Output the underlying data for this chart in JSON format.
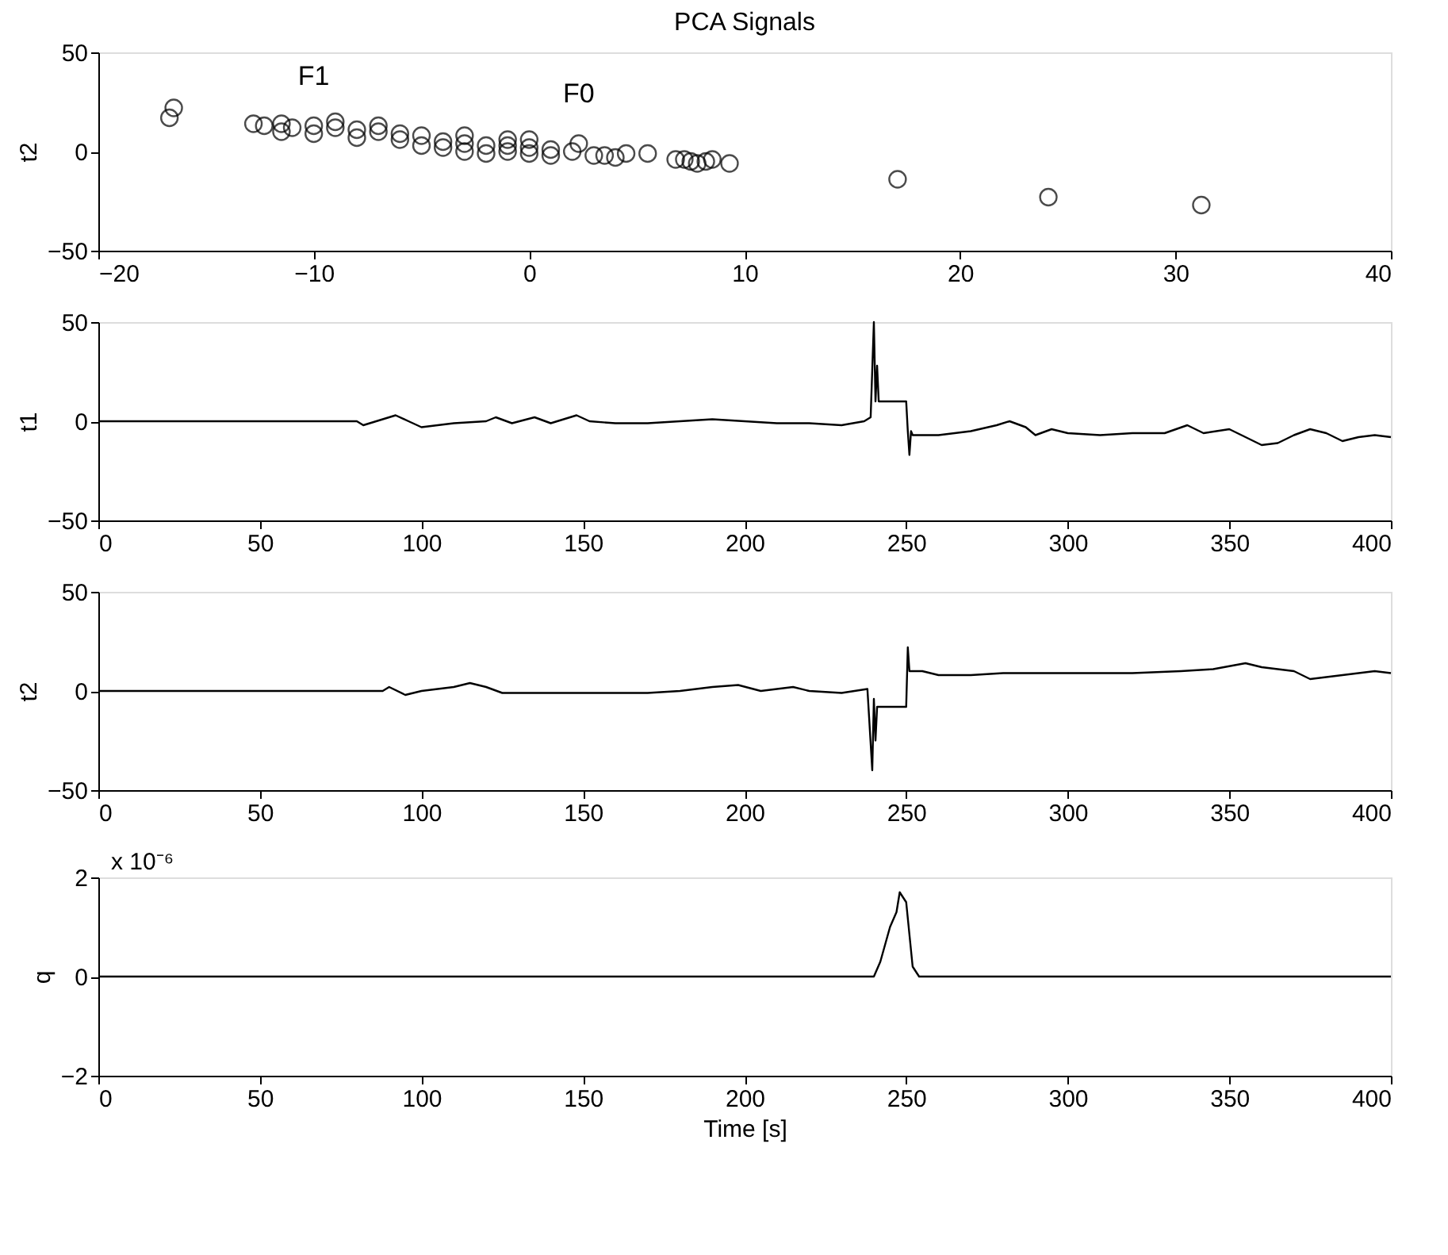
{
  "chart_data": [
    {
      "type": "scatter",
      "title": "PCA Signals",
      "ylabel": "t2",
      "marker": "circle",
      "grid": false,
      "xlim": [
        -20,
        40
      ],
      "xticks": [
        -20,
        -10,
        0,
        10,
        20,
        30,
        40
      ],
      "ylim": [
        -50,
        50
      ],
      "yticks": [
        -50,
        0,
        50
      ],
      "annotations": [
        {
          "text": "F1",
          "x": -10,
          "y": 13
        },
        {
          "text": "F0",
          "x": 2.3,
          "y": 4
        }
      ],
      "series": [
        {
          "color": "#000000",
          "x": [
            -16.5,
            -16.7,
            -12.8,
            -12.3,
            -11.5,
            -11,
            -10,
            -9,
            -8,
            -7,
            -6,
            -5,
            -4,
            -3,
            -2,
            -1,
            0,
            1,
            2,
            2.3,
            -11.5,
            -10,
            -8,
            -6,
            -4,
            -3,
            -2,
            -1,
            0,
            1,
            -5,
            -3,
            -1,
            0,
            -7,
            -9,
            3,
            3.5,
            4,
            4.5,
            5.5,
            6.8,
            7.2,
            7.5,
            7.8,
            8.2,
            8.5,
            9.3,
            17.1,
            24.1,
            31.2
          ],
          "values": [
            22,
            17,
            14,
            13,
            14,
            12,
            13,
            12,
            11,
            10,
            9,
            8,
            5,
            4,
            3,
            3,
            2,
            1,
            0,
            4,
            10,
            9,
            7,
            6,
            2,
            0,
            -1,
            0,
            -1,
            -2,
            3,
            8,
            6,
            6,
            13,
            15,
            -2,
            -2,
            -3,
            -1,
            -1,
            -4,
            -4,
            -5,
            -6,
            -5,
            -4,
            -6,
            -14,
            -23,
            -27
          ]
        }
      ]
    },
    {
      "type": "line",
      "ylabel": "t1",
      "marker": "none",
      "line_style": "solid",
      "grid": false,
      "legend": false,
      "xlim": [
        0,
        400
      ],
      "xticks": [
        0,
        50,
        100,
        150,
        200,
        250,
        300,
        350,
        400
      ],
      "ylim": [
        -50,
        50
      ],
      "yticks": [
        -50,
        0,
        50
      ],
      "series": [
        {
          "color": "#000000",
          "x": [
            0,
            80,
            82,
            88,
            92,
            96,
            100,
            105,
            110,
            120,
            123,
            128,
            135,
            140,
            148,
            152,
            160,
            170,
            180,
            190,
            200,
            210,
            220,
            230,
            237,
            239,
            240,
            240.5,
            241,
            241.5,
            250,
            250.5,
            251,
            251.5,
            252,
            260,
            270,
            278,
            282,
            287,
            290,
            295,
            300,
            310,
            320,
            330,
            337,
            342,
            350,
            355,
            360,
            365,
            370,
            375,
            380,
            385,
            390,
            395,
            400
          ],
          "values": [
            0,
            0,
            -2,
            1,
            3,
            0,
            -3,
            -2,
            -1,
            0,
            2,
            -1,
            2,
            -1,
            3,
            0,
            -1,
            -1,
            0,
            1,
            0,
            -1,
            -1,
            -2,
            0,
            2,
            50,
            10,
            28,
            10,
            10,
            -5,
            -17,
            -5,
            -7,
            -7,
            -5,
            -2,
            0,
            -3,
            -7,
            -4,
            -6,
            -7,
            -6,
            -6,
            -2,
            -6,
            -4,
            -8,
            -12,
            -11,
            -7,
            -4,
            -6,
            -10,
            -8,
            -7,
            -8
          ]
        }
      ]
    },
    {
      "type": "line",
      "ylabel": "t2",
      "marker": "none",
      "line_style": "solid",
      "grid": false,
      "legend": false,
      "xlim": [
        0,
        400
      ],
      "xticks": [
        0,
        50,
        100,
        150,
        200,
        250,
        300,
        350,
        400
      ],
      "ylim": [
        -50,
        50
      ],
      "yticks": [
        -50,
        0,
        50
      ],
      "series": [
        {
          "color": "#000000",
          "x": [
            0,
            88,
            90,
            95,
            100,
            105,
            110,
            115,
            120,
            125,
            140,
            150,
            160,
            170,
            180,
            190,
            198,
            205,
            215,
            220,
            230,
            238,
            239.5,
            240,
            240.5,
            241,
            245,
            250,
            250.5,
            251,
            255,
            260,
            270,
            280,
            290,
            300,
            320,
            335,
            345,
            355,
            360,
            370,
            375,
            385,
            395,
            400
          ],
          "values": [
            0,
            0,
            2,
            -2,
            0,
            1,
            2,
            4,
            2,
            -1,
            -1,
            -1,
            -1,
            -1,
            0,
            2,
            3,
            0,
            2,
            0,
            -1,
            1,
            -40,
            -4,
            -25,
            -8,
            -8,
            -8,
            22,
            10,
            10,
            8,
            8,
            9,
            9,
            9,
            9,
            10,
            11,
            14,
            12,
            10,
            6,
            8,
            10,
            9
          ]
        }
      ]
    },
    {
      "type": "line",
      "ylabel": "q",
      "xlabel": "Time [s]",
      "marker": "none",
      "line_style": "solid",
      "grid": false,
      "legend": false,
      "xlim": [
        0,
        400
      ],
      "xticks": [
        0,
        50,
        100,
        150,
        200,
        250,
        300,
        350,
        400
      ],
      "ylim": [
        -2,
        2
      ],
      "yticks": [
        -2,
        0,
        2
      ],
      "annotations": [
        "x 10⁻⁶"
      ],
      "series": [
        {
          "color": "#000000",
          "x": [
            0,
            240,
            242,
            245,
            247,
            248,
            249,
            250,
            252,
            254,
            400
          ],
          "values": [
            0,
            0,
            0.3,
            1.0,
            1.3,
            1.7,
            1.6,
            1.5,
            0.2,
            0,
            0
          ]
        }
      ]
    }
  ]
}
